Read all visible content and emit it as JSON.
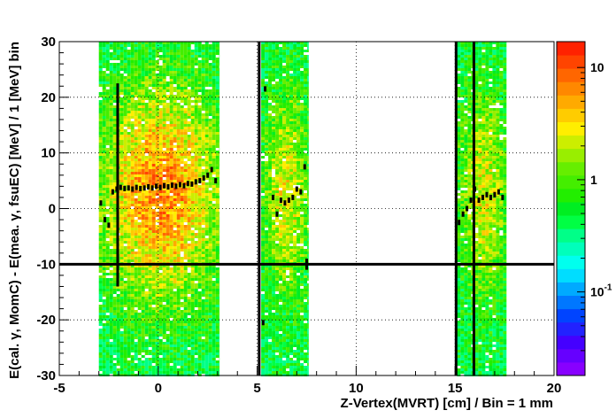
{
  "chart_data": {
    "type": "heatmap",
    "xlabel": "Z-Vertex(MVRT) [cm] / Bin = 1 mm",
    "ylabel": "E(cal. γ, MomC) - E(mea. γ, fsuEC) [MeV] / 1 [MeV] bin",
    "xlim": [
      -5,
      20
    ],
    "ylim": [
      -30,
      30
    ],
    "x_ticks": [
      "-5",
      "0",
      "5",
      "10",
      "15",
      "20"
    ],
    "y_ticks": [
      "30",
      "20",
      "10",
      "0",
      "-10",
      "-20",
      "-30"
    ],
    "grid": true,
    "log_z": true,
    "colorbar": {
      "ticks": [
        {
          "label": "10",
          "value": 10
        },
        {
          "label": "1",
          "value": 1
        },
        {
          "label": "10",
          "sup": "-1",
          "value": 0.1
        }
      ],
      "colors": [
        "#8800ff",
        "#6600ff",
        "#4400ff",
        "#2222ff",
        "#0044ff",
        "#0077ff",
        "#00aaff",
        "#00ddff",
        "#00ffee",
        "#00ffbb",
        "#00ff88",
        "#00ff44",
        "#00ee22",
        "#22ee00",
        "#44ee00",
        "#66ee00",
        "#99ee00",
        "#ccee00",
        "#ffee00",
        "#ffcc00",
        "#ffaa00",
        "#ff8800",
        "#ff6600",
        "#ff4400",
        "#ff2200"
      ]
    },
    "regions": [
      {
        "x": [
          -3.0,
          3.1
        ],
        "peak_level": 0.85
      },
      {
        "x": [
          5.2,
          7.6
        ],
        "peak_level": 0.55
      },
      {
        "x": [
          15.1,
          17.6
        ],
        "peak_level": 0.55
      }
    ],
    "profile_points": [
      {
        "x": -2.9,
        "y": 1.0
      },
      {
        "x": -2.7,
        "y": -2.0
      },
      {
        "x": -2.5,
        "y": -3.0
      },
      {
        "x": -2.3,
        "y": 3.0
      },
      {
        "x": -2.1,
        "y": 3.5
      },
      {
        "x": -1.9,
        "y": 3.8
      },
      {
        "x": -1.7,
        "y": 3.6
      },
      {
        "x": -1.5,
        "y": 3.7
      },
      {
        "x": -1.3,
        "y": 3.5
      },
      {
        "x": -1.1,
        "y": 3.8
      },
      {
        "x": -0.9,
        "y": 3.6
      },
      {
        "x": -0.7,
        "y": 3.7
      },
      {
        "x": -0.5,
        "y": 3.9
      },
      {
        "x": -0.3,
        "y": 3.7
      },
      {
        "x": -0.1,
        "y": 4.0
      },
      {
        "x": 0.1,
        "y": 3.8
      },
      {
        "x": 0.3,
        "y": 4.1
      },
      {
        "x": 0.5,
        "y": 3.9
      },
      {
        "x": 0.7,
        "y": 4.2
      },
      {
        "x": 0.9,
        "y": 4.0
      },
      {
        "x": 1.1,
        "y": 4.3
      },
      {
        "x": 1.3,
        "y": 4.1
      },
      {
        "x": 1.5,
        "y": 4.5
      },
      {
        "x": 1.7,
        "y": 4.4
      },
      {
        "x": 1.9,
        "y": 4.8
      },
      {
        "x": 2.1,
        "y": 5.0
      },
      {
        "x": 2.3,
        "y": 5.5
      },
      {
        "x": 2.5,
        "y": 6.0
      },
      {
        "x": 2.7,
        "y": 7.0
      },
      {
        "x": 2.9,
        "y": 5.0
      },
      {
        "x": 5.3,
        "y": -20.5
      },
      {
        "x": 5.4,
        "y": 21.5
      },
      {
        "x": 5.8,
        "y": 2.0
      },
      {
        "x": 6.0,
        "y": -1.0
      },
      {
        "x": 6.2,
        "y": 1.5
      },
      {
        "x": 6.4,
        "y": 1.0
      },
      {
        "x": 6.6,
        "y": 1.5
      },
      {
        "x": 6.8,
        "y": 2.0
      },
      {
        "x": 7.0,
        "y": 3.5
      },
      {
        "x": 7.2,
        "y": 3.0
      },
      {
        "x": 7.4,
        "y": 7.5
      },
      {
        "x": 15.2,
        "y": -2.5
      },
      {
        "x": 15.4,
        "y": -1.0
      },
      {
        "x": 15.6,
        "y": 0.0
      },
      {
        "x": 15.8,
        "y": 1.5
      },
      {
        "x": 16.0,
        "y": 3.5
      },
      {
        "x": 16.2,
        "y": 1.5
      },
      {
        "x": 16.4,
        "y": 2.0
      },
      {
        "x": 16.6,
        "y": 2.5
      },
      {
        "x": 16.8,
        "y": 2.0
      },
      {
        "x": 17.0,
        "y": 2.5
      },
      {
        "x": 17.2,
        "y": 3.0
      },
      {
        "x": 17.4,
        "y": 2.0
      }
    ],
    "error_bars": [
      {
        "x": -2.05,
        "y_low": -14,
        "y_high": 22.5
      },
      {
        "x": 5.1,
        "y_low": -30,
        "y_high": 30
      },
      {
        "x": 15.05,
        "y_low": -30,
        "y_high": 30
      },
      {
        "x": 15.95,
        "y_low": -30,
        "y_high": 30
      },
      {
        "x": 7.5,
        "y_low": -11,
        "y_high": -9
      }
    ],
    "empty_bin_level": -10
  }
}
